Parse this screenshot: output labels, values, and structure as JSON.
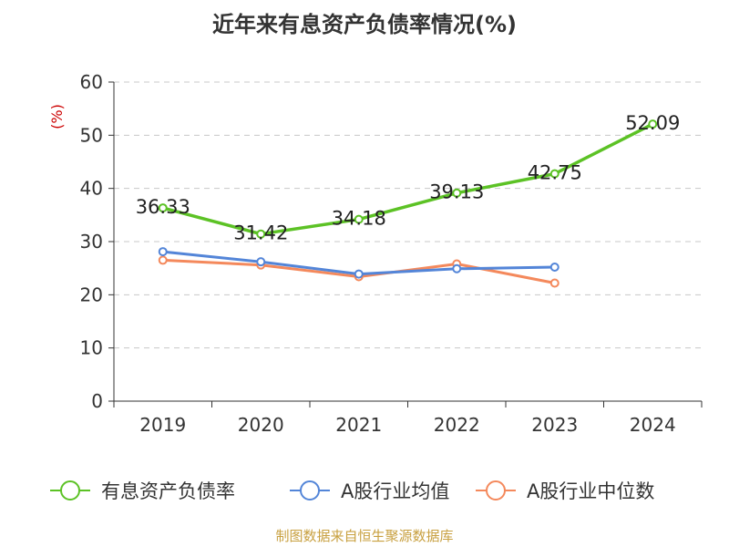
{
  "chart_data": {
    "type": "line",
    "title": "近年来有息资产负债率情况(%)",
    "ylabel": "(%)",
    "xlabel": "",
    "categories": [
      "2019",
      "2020",
      "2021",
      "2022",
      "2023",
      "2024"
    ],
    "ylim": [
      0,
      60
    ],
    "yticks": [
      "0",
      "10",
      "20",
      "30",
      "40",
      "50",
      "60"
    ],
    "grid": true,
    "legend_position": "bottom",
    "series": [
      {
        "name": "有息资产负债率",
        "color": "#5cc225",
        "values": [
          36.33,
          31.42,
          34.18,
          39.13,
          42.75,
          52.09
        ],
        "labels": [
          "36.33",
          "31.42",
          "34.18",
          "39.13",
          "42.75",
          "52.09"
        ]
      },
      {
        "name": "A股行业均值",
        "color": "#5385d8",
        "values": [
          28.1,
          26.2,
          23.9,
          24.9,
          25.2,
          null
        ],
        "labels": []
      },
      {
        "name": "A股行业中位数",
        "color": "#f4895c",
        "values": [
          26.5,
          25.6,
          23.4,
          25.8,
          22.2,
          null
        ],
        "labels": []
      }
    ]
  },
  "source": "制图数据来自恒生聚源数据库"
}
